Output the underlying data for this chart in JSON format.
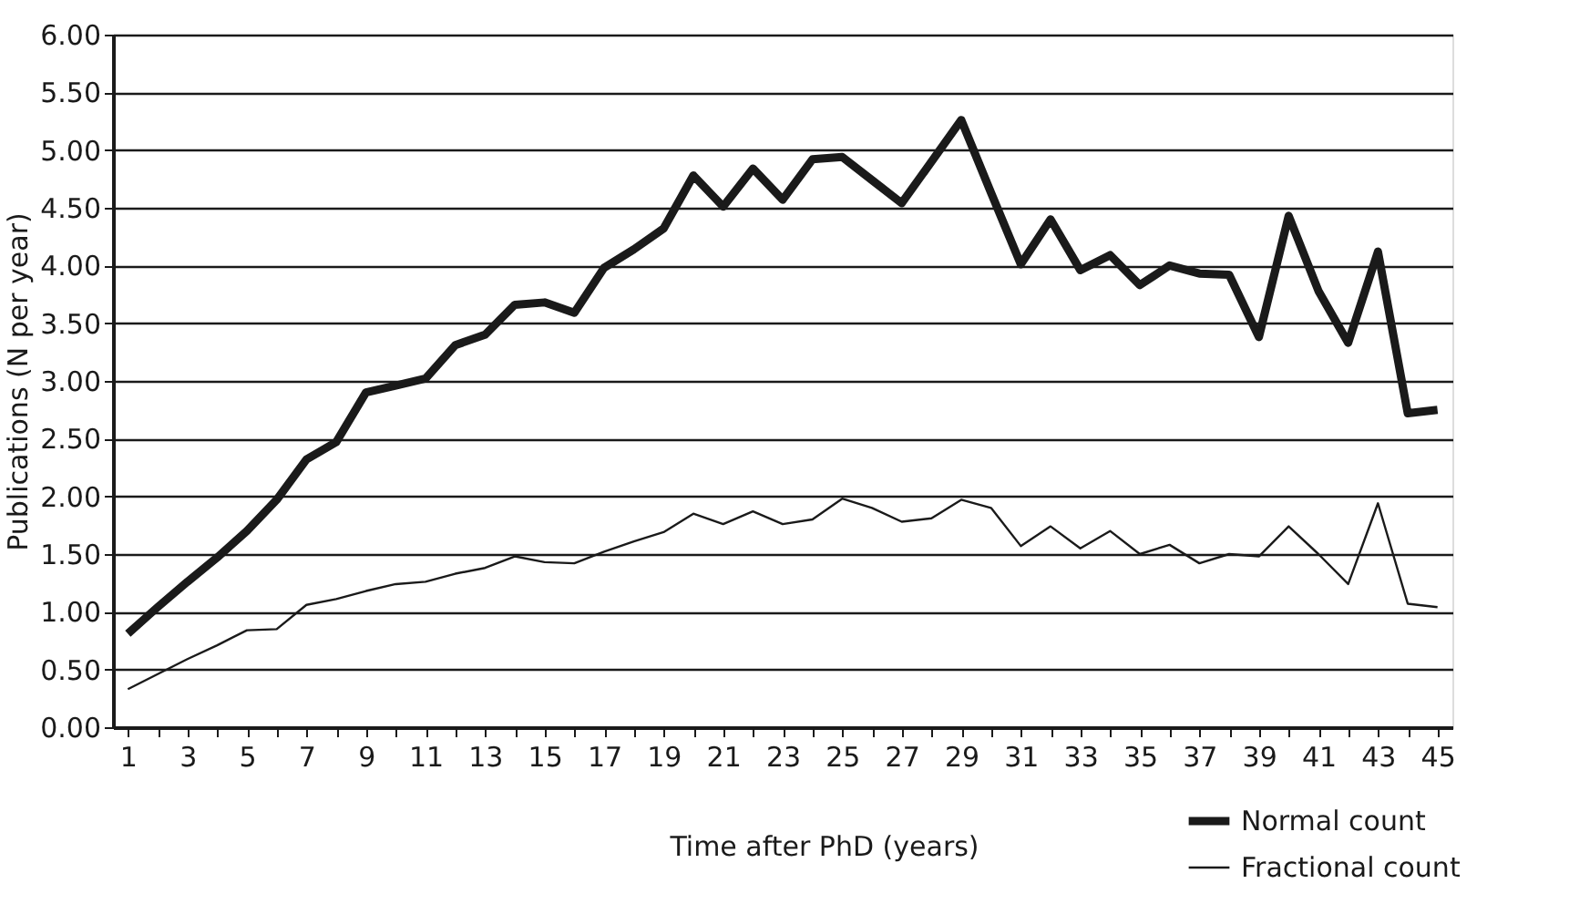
{
  "chart_data": {
    "type": "line",
    "xlabel": "Time after PhD (years)",
    "ylabel": "Publications (N per year)",
    "x": [
      1,
      2,
      3,
      4,
      5,
      6,
      7,
      8,
      9,
      10,
      11,
      12,
      13,
      14,
      15,
      16,
      17,
      18,
      19,
      20,
      21,
      22,
      23,
      24,
      25,
      26,
      27,
      28,
      29,
      30,
      31,
      32,
      33,
      34,
      35,
      36,
      37,
      38,
      39,
      40,
      41,
      42,
      43,
      44,
      45
    ],
    "series": [
      {
        "name": "Normal count",
        "color": "#1a1a1a",
        "values": [
          0.81,
          1.04,
          1.26,
          1.47,
          1.7,
          1.97,
          2.32,
          2.47,
          2.9,
          2.96,
          3.02,
          3.31,
          3.4,
          3.66,
          3.68,
          3.59,
          3.98,
          4.14,
          4.32,
          4.78,
          4.51,
          4.84,
          4.57,
          4.92,
          4.94,
          4.74,
          4.54,
          4.9,
          5.26,
          4.63,
          4.01,
          4.4,
          3.96,
          4.09,
          3.83,
          4.0,
          3.93,
          3.92,
          3.38,
          4.43,
          3.78,
          3.33,
          4.12,
          2.72,
          2.75
        ]
      },
      {
        "name": "Fractional count",
        "color": "#1a1a1a",
        "values": [
          0.33,
          0.46,
          0.59,
          0.71,
          0.84,
          0.85,
          1.06,
          1.11,
          1.18,
          1.24,
          1.26,
          1.33,
          1.38,
          1.48,
          1.43,
          1.42,
          1.52,
          1.61,
          1.69,
          1.85,
          1.76,
          1.87,
          1.76,
          1.8,
          1.98,
          1.9,
          1.78,
          1.81,
          1.97,
          1.9,
          1.57,
          1.74,
          1.55,
          1.7,
          1.5,
          1.58,
          1.42,
          1.5,
          1.48,
          1.74,
          1.5,
          1.24,
          1.94,
          1.07,
          1.04
        ]
      }
    ],
    "xlim": [
      0.5,
      45.5
    ],
    "xticks": [
      1,
      {
        "value": 2,
        "label": null
      },
      3,
      {
        "value": 4,
        "label": null
      },
      5,
      {
        "value": 6,
        "label": null
      },
      7,
      {
        "value": 8,
        "label": null
      },
      9,
      {
        "value": 10,
        "label": null
      },
      11,
      {
        "value": 12,
        "label": null
      },
      13,
      {
        "value": 14,
        "label": null
      },
      15,
      {
        "value": 16,
        "label": null
      },
      17,
      {
        "value": 18,
        "label": null
      },
      19,
      {
        "value": 20,
        "label": null
      },
      21,
      {
        "value": 22,
        "label": null
      },
      23,
      {
        "value": 24,
        "label": null
      },
      25,
      {
        "value": 26,
        "label": null
      },
      27,
      {
        "value": 28,
        "label": null
      },
      29,
      {
        "value": 30,
        "label": null
      },
      31,
      {
        "value": 32,
        "label": null
      },
      33,
      {
        "value": 34,
        "label": null
      },
      35,
      {
        "value": 36,
        "label": null
      },
      37,
      {
        "value": 38,
        "label": null
      },
      39,
      {
        "value": 40,
        "label": null
      },
      41,
      {
        "value": 42,
        "label": null
      },
      43,
      {
        "value": 44,
        "label": null
      },
      45
    ],
    "ylim": [
      0,
      6
    ],
    "yticks": [
      {
        "value": 0,
        "label": "0.00"
      },
      {
        "value": 0.5,
        "label": "0.50"
      },
      {
        "value": 1,
        "label": "1.00"
      },
      {
        "value": 1.5,
        "label": "1.50"
      },
      {
        "value": 2,
        "label": "2.00"
      },
      {
        "value": 2.5,
        "label": "2.50"
      },
      {
        "value": 3,
        "label": "3.00"
      },
      {
        "value": 3.5,
        "label": "3.50"
      },
      {
        "value": 4,
        "label": "4.00"
      },
      {
        "value": 4.5,
        "label": "4.50"
      },
      {
        "value": 5,
        "label": "5.00"
      },
      {
        "value": 5.5,
        "label": "5.50"
      },
      {
        "value": 6,
        "label": "6.00"
      }
    ],
    "grid": "y",
    "legend": "bottom right",
    "marker": "none",
    "line_style": "solid"
  }
}
